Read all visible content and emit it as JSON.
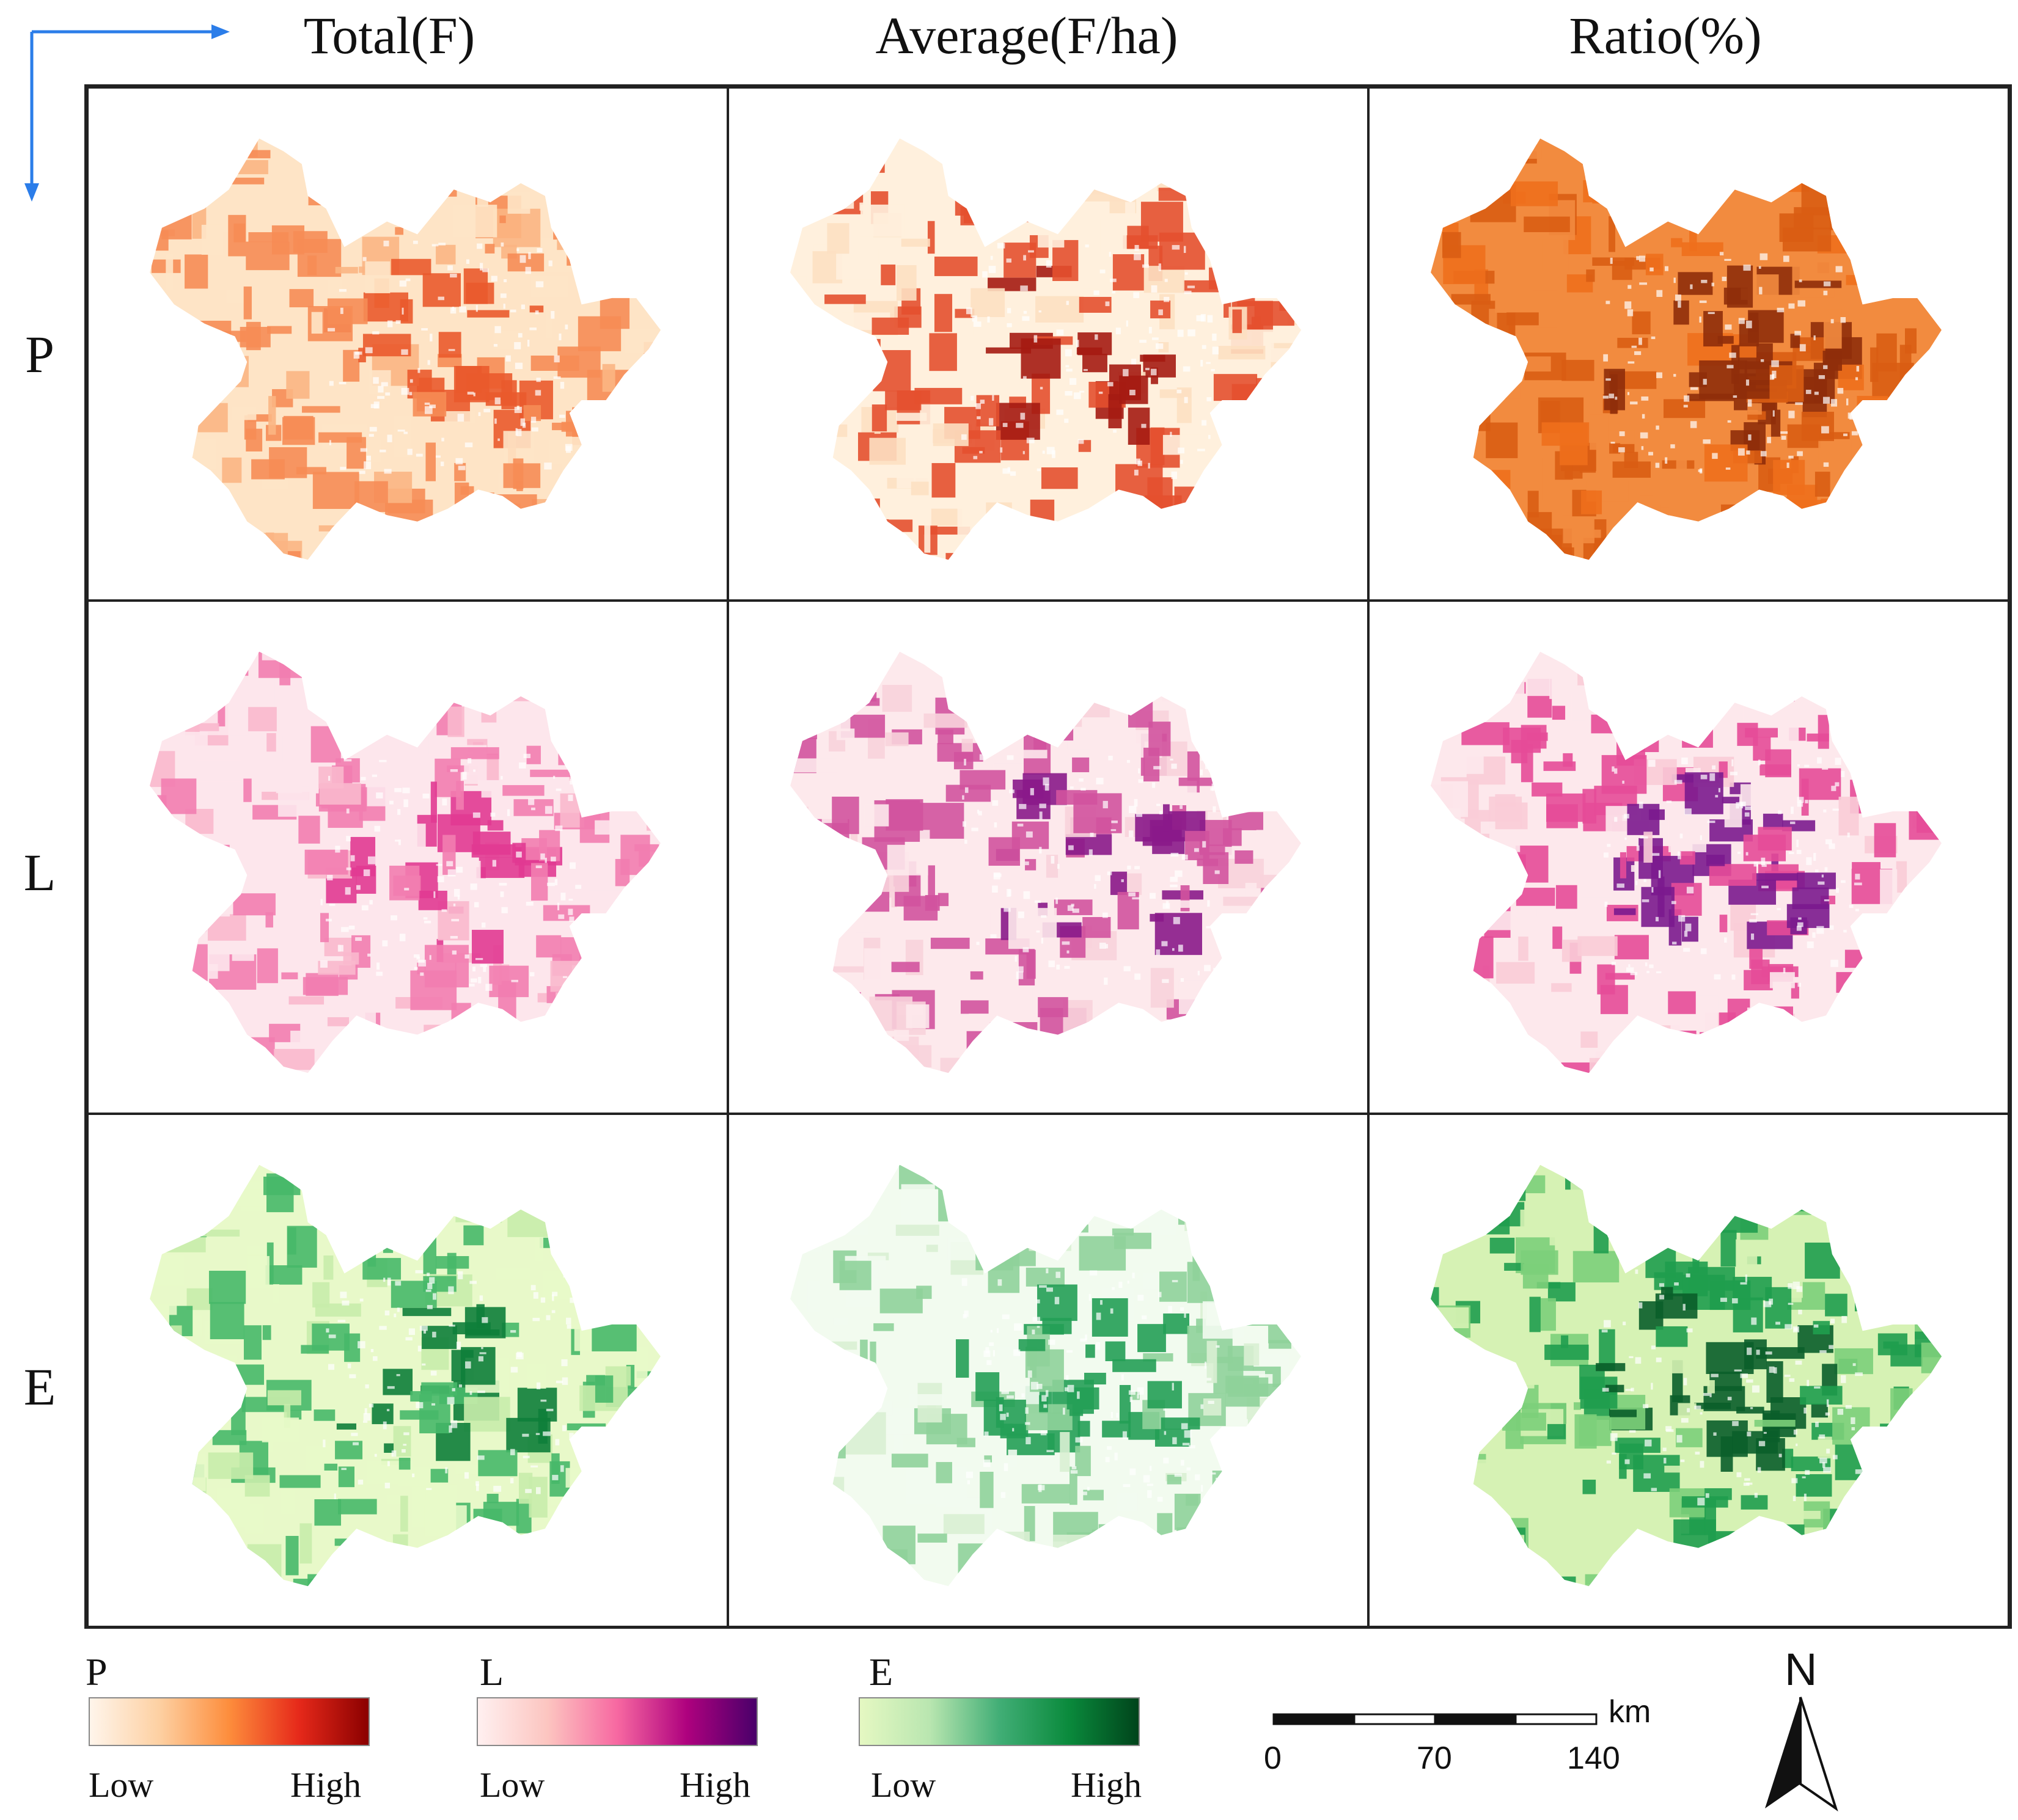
{
  "columns": [
    "Total(F)",
    "Average(F/ha)",
    "Ratio(%)"
  ],
  "rows": [
    "P",
    "L",
    "E"
  ],
  "legends": [
    {
      "title": "P",
      "low": "Low",
      "high": "High",
      "colors": [
        "#fff5eb",
        "#fdd0a2",
        "#fd8d3c",
        "#e6291a",
        "#8b0000"
      ]
    },
    {
      "title": "L",
      "low": "Low",
      "high": "High",
      "colors": [
        "#fff0f0",
        "#fcc5c0",
        "#f768a1",
        "#ae017e",
        "#49006a"
      ]
    },
    {
      "title": "E",
      "low": "Low",
      "high": "High",
      "colors": [
        "#e5f8c2",
        "#b9e6b0",
        "#41ae76",
        "#0a8a3c",
        "#00441b"
      ]
    }
  ],
  "scale_bar": {
    "labels": [
      "0",
      "70",
      "140"
    ],
    "unit": "km"
  },
  "north_arrow": {
    "label": "N"
  },
  "panel_palettes": {
    "P": [
      [
        "#fee4c6",
        "#fbb583",
        "#f68c55",
        "#ea5a2c"
      ],
      [
        "#fff0dd",
        "#fde0c2",
        "#e4502f",
        "#a51b12"
      ],
      [
        "#f28b3f",
        "#ee6f1c",
        "#d95d13",
        "#8f2d0a"
      ]
    ],
    "L": [
      [
        "#fde6ec",
        "#f9b8cd",
        "#f27db0",
        "#e13a92"
      ],
      [
        "#fde9ec",
        "#f8d3dc",
        "#d1539f",
        "#8a1a8a"
      ],
      [
        "#fde8ec",
        "#f9ccd7",
        "#e54b98",
        "#7b1a8e"
      ]
    ],
    "E": [
      [
        "#e8f9c9",
        "#c8ecab",
        "#47b869",
        "#0e7e3a"
      ],
      [
        "#f2fbef",
        "#d9f0d3",
        "#8fd29a",
        "#239f55"
      ],
      [
        "#d6f2b4",
        "#7ccf7a",
        "#1f9d4e",
        "#0a5e2a"
      ]
    ]
  }
}
